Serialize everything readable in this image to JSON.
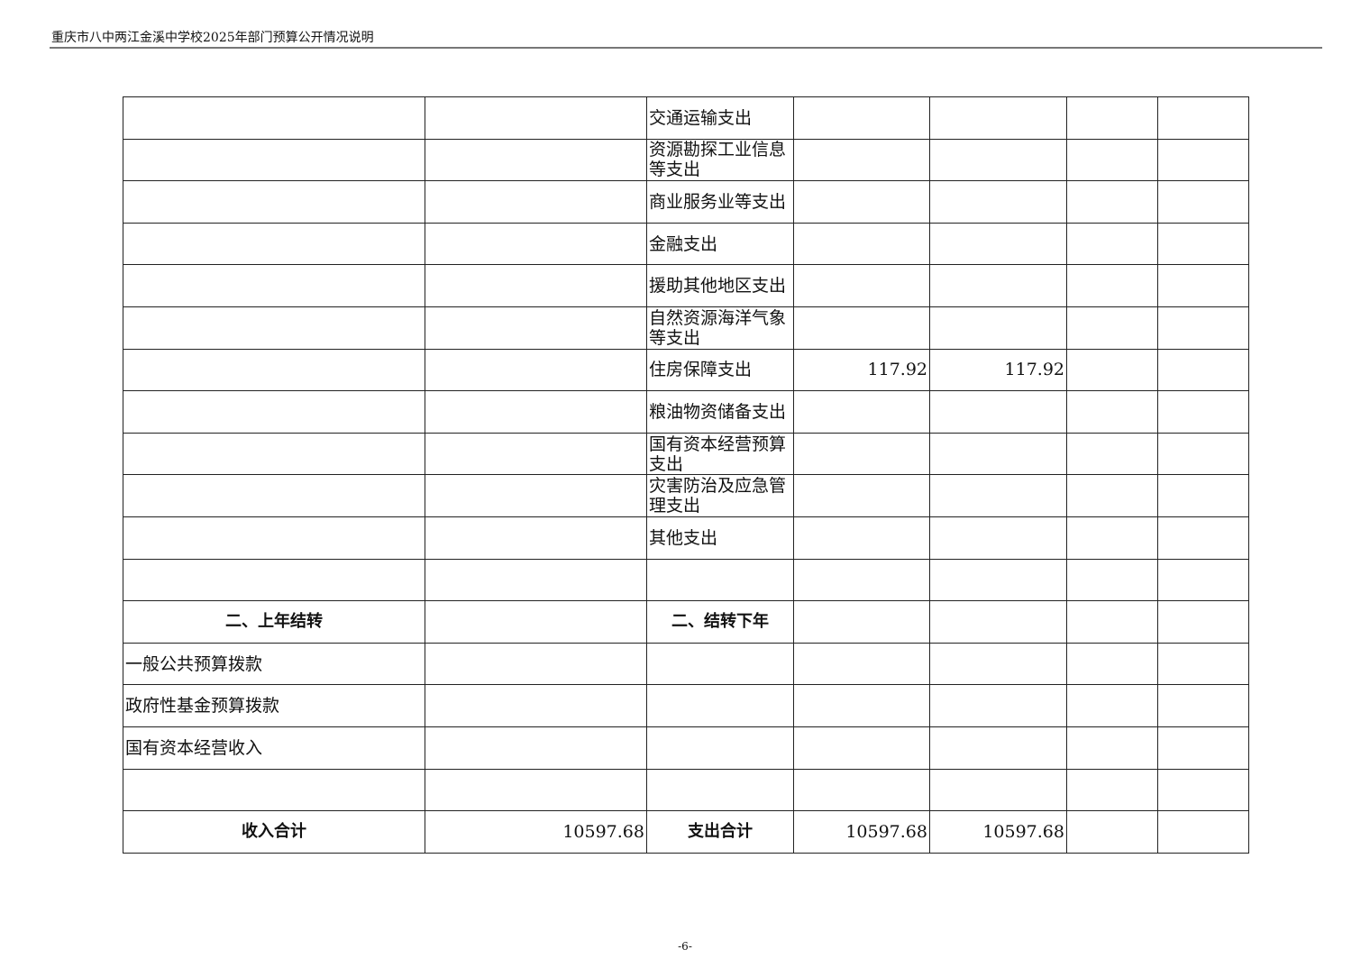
{
  "header": {
    "title": "重庆市八中两江金溪中学校2025年部门预算公开情况说明"
  },
  "table": {
    "rows": [
      {
        "cells": [
          "",
          "",
          "交通运输支出",
          "",
          "",
          "",
          ""
        ]
      },
      {
        "cells": [
          "",
          "",
          "资源勘探工业信息等支出",
          "",
          "",
          "",
          ""
        ]
      },
      {
        "cells": [
          "",
          "",
          "商业服务业等支出",
          "",
          "",
          "",
          ""
        ]
      },
      {
        "cells": [
          "",
          "",
          "金融支出",
          "",
          "",
          "",
          ""
        ]
      },
      {
        "cells": [
          "",
          "",
          "援助其他地区支出",
          "",
          "",
          "",
          ""
        ]
      },
      {
        "cells": [
          "",
          "",
          "自然资源海洋气象等支出",
          "",
          "",
          "",
          ""
        ]
      },
      {
        "cells": [
          "",
          "",
          "住房保障支出",
          "117.92",
          "117.92",
          "",
          ""
        ]
      },
      {
        "cells": [
          "",
          "",
          "粮油物资储备支出",
          "",
          "",
          "",
          ""
        ]
      },
      {
        "cells": [
          "",
          "",
          "国有资本经营预算支出",
          "",
          "",
          "",
          ""
        ]
      },
      {
        "cells": [
          "",
          "",
          "灾害防治及应急管理支出",
          "",
          "",
          "",
          ""
        ]
      },
      {
        "cells": [
          "",
          "",
          "其他支出",
          "",
          "",
          "",
          ""
        ]
      },
      {
        "cells": [
          "",
          "",
          "",
          "",
          "",
          "",
          ""
        ]
      },
      {
        "cells": [
          "二、上年结转",
          "",
          "二、结转下年",
          "",
          "",
          "",
          ""
        ],
        "bold": true
      },
      {
        "cells": [
          "一般公共预算拨款",
          "",
          "",
          "",
          "",
          "",
          ""
        ]
      },
      {
        "cells": [
          "政府性基金预算拨款",
          "",
          "",
          "",
          "",
          "",
          ""
        ]
      },
      {
        "cells": [
          "国有资本经营收入",
          "",
          "",
          "",
          "",
          "",
          ""
        ]
      },
      {
        "cells": [
          "",
          "",
          "",
          "",
          "",
          "",
          ""
        ]
      },
      {
        "cells": [
          "收入合计",
          "10597.68",
          "支出合计",
          "10597.68",
          "10597.68",
          "",
          ""
        ],
        "bold": true
      }
    ]
  },
  "footer": {
    "page": "-6-"
  }
}
